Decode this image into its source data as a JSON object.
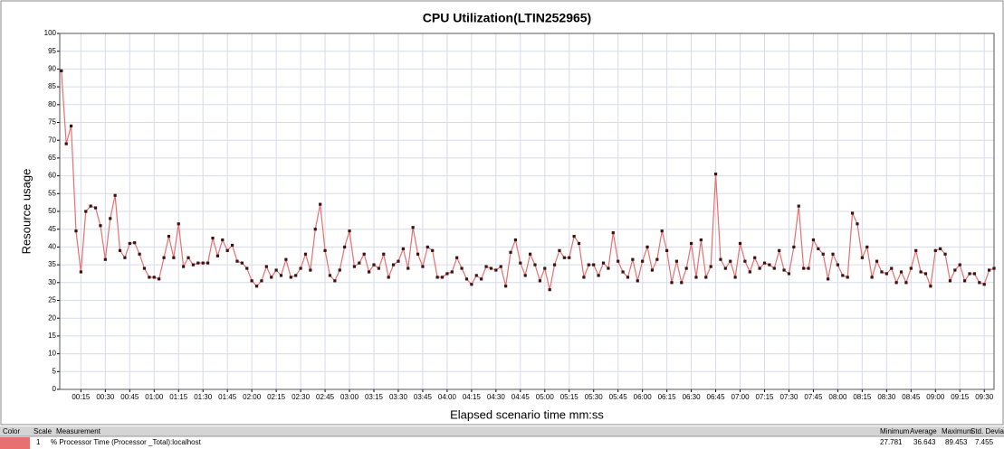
{
  "chart_data": {
    "type": "line",
    "title": "CPU Utilization(LTIN252965)",
    "ylabel": "Resource usage",
    "xlabel": "Elapsed scenario time mm:ss",
    "x": [
      3,
      6,
      9,
      12,
      15,
      18,
      21,
      24,
      27,
      30,
      33,
      36,
      39,
      42,
      45,
      48,
      51,
      54,
      57,
      60,
      63,
      66,
      69,
      72,
      75,
      78,
      81,
      84,
      87,
      90,
      93,
      96,
      99,
      102,
      105,
      108,
      111,
      114,
      117,
      120,
      123,
      126,
      129,
      132,
      135,
      138,
      141,
      144,
      147,
      150,
      153,
      156,
      159,
      162,
      165,
      168,
      171,
      174,
      177,
      180,
      183,
      186,
      189,
      192,
      195,
      198,
      201,
      204,
      207,
      210,
      213,
      216,
      219,
      222,
      225,
      228,
      231,
      234,
      237,
      240,
      243,
      246,
      249,
      252,
      255,
      258,
      261,
      264,
      267,
      270,
      273,
      276,
      279,
      282,
      285,
      288,
      291,
      294,
      297,
      300,
      303,
      306,
      309,
      312,
      315,
      318,
      321,
      324,
      327,
      330,
      333,
      336,
      339,
      342,
      345,
      348,
      351,
      354,
      357,
      360,
      363,
      366,
      369,
      372,
      375,
      378,
      381,
      384,
      387,
      390,
      393,
      396,
      399,
      402,
      405,
      408,
      411,
      414,
      417,
      420,
      423,
      426,
      429,
      432,
      435,
      438,
      441,
      444,
      447,
      450,
      453,
      456,
      459,
      462,
      465,
      468,
      471,
      474,
      477,
      480,
      483,
      486,
      489,
      492,
      495,
      498,
      501,
      504,
      507,
      510,
      513,
      516,
      519,
      522,
      525,
      528,
      531,
      534,
      537,
      540,
      543,
      546,
      549,
      552,
      555,
      558,
      561,
      564,
      567,
      570,
      573,
      576
    ],
    "series": [
      {
        "name": "% Processor Time (Processor _Total):localhost",
        "color": "#e87070",
        "marker_color": "#3a1212",
        "values": [
          89.5,
          69,
          74,
          44.5,
          33,
          50,
          51.5,
          51,
          46,
          36.5,
          48,
          54.5,
          39,
          37,
          41,
          41.2,
          38,
          34,
          31.5,
          31.5,
          31,
          37,
          43,
          37,
          46.5,
          34.5,
          37,
          35,
          35.5,
          35.5,
          35.5,
          42.5,
          37.5,
          42,
          39,
          40.5,
          36,
          35.5,
          34,
          30.5,
          29,
          30.5,
          34.5,
          31.5,
          33.5,
          32,
          36.5,
          31.5,
          32,
          34,
          38,
          33.5,
          45,
          52,
          39,
          32,
          30.5,
          33.5,
          40,
          44.5,
          34.5,
          35.5,
          38,
          33,
          35,
          34,
          38,
          31.5,
          35,
          36,
          39.5,
          34,
          45.5,
          38,
          34.5,
          40,
          39,
          31.5,
          31.5,
          32.5,
          33,
          37,
          34,
          31,
          29.5,
          32,
          31,
          34.5,
          34,
          33.5,
          34.5,
          29,
          38.5,
          42,
          35.5,
          32,
          38,
          35,
          30.5,
          34,
          28,
          35,
          39,
          37,
          37,
          43,
          41,
          31.5,
          35,
          35,
          32,
          35.5,
          34,
          44,
          36,
          33,
          31.5,
          36.5,
          30.5,
          36,
          40,
          33.5,
          36.5,
          44.5,
          39,
          30,
          36,
          30,
          34,
          41,
          31.5,
          42,
          31.5,
          34.5,
          60.5,
          36.5,
          34,
          36,
          31.5,
          41,
          36,
          33,
          37,
          34,
          35.5,
          35,
          34,
          39,
          33.5,
          32.5,
          40,
          51.5,
          34,
          34,
          42,
          39.5,
          38,
          31,
          38,
          35,
          32,
          31.5,
          49.5,
          46.5,
          37,
          40,
          31.5,
          36,
          33,
          32.5,
          34,
          30,
          33,
          30,
          34,
          39,
          33,
          32.5,
          29,
          39,
          39.5,
          38,
          30.5,
          33.5,
          35,
          30.5,
          32.5,
          32.5,
          30,
          29.5,
          33.5,
          34
        ]
      }
    ],
    "xlim": [
      2,
      576
    ],
    "ylim": [
      0,
      100
    ],
    "yticks": [
      0,
      5,
      10,
      15,
      20,
      25,
      30,
      35,
      40,
      45,
      50,
      55,
      60,
      65,
      70,
      75,
      80,
      85,
      90,
      95,
      100
    ],
    "xticks": [
      {
        "value": 15,
        "label": "00:15"
      },
      {
        "value": 30,
        "label": "00:30"
      },
      {
        "value": 45,
        "label": "00:45"
      },
      {
        "value": 60,
        "label": "01:00"
      },
      {
        "value": 75,
        "label": "01:15"
      },
      {
        "value": 90,
        "label": "01:30"
      },
      {
        "value": 105,
        "label": "01:45"
      },
      {
        "value": 120,
        "label": "02:00"
      },
      {
        "value": 135,
        "label": "02:15"
      },
      {
        "value": 150,
        "label": "02:30"
      },
      {
        "value": 165,
        "label": "02:45"
      },
      {
        "value": 180,
        "label": "03:00"
      },
      {
        "value": 195,
        "label": "03:15"
      },
      {
        "value": 210,
        "label": "03:30"
      },
      {
        "value": 225,
        "label": "03:45"
      },
      {
        "value": 240,
        "label": "04:00"
      },
      {
        "value": 255,
        "label": "04:15"
      },
      {
        "value": 270,
        "label": "04:30"
      },
      {
        "value": 285,
        "label": "04:45"
      },
      {
        "value": 300,
        "label": "05:00"
      },
      {
        "value": 315,
        "label": "05:15"
      },
      {
        "value": 330,
        "label": "05:30"
      },
      {
        "value": 345,
        "label": "05:45"
      },
      {
        "value": 360,
        "label": "06:00"
      },
      {
        "value": 375,
        "label": "06:15"
      },
      {
        "value": 390,
        "label": "06:30"
      },
      {
        "value": 405,
        "label": "06:45"
      },
      {
        "value": 420,
        "label": "07:00"
      },
      {
        "value": 435,
        "label": "07:15"
      },
      {
        "value": 450,
        "label": "07:30"
      },
      {
        "value": 465,
        "label": "07:45"
      },
      {
        "value": 480,
        "label": "08:00"
      },
      {
        "value": 495,
        "label": "08:15"
      },
      {
        "value": 510,
        "label": "08:30"
      },
      {
        "value": 525,
        "label": "08:45"
      },
      {
        "value": 540,
        "label": "09:00"
      },
      {
        "value": 555,
        "label": "09:15"
      },
      {
        "value": 570,
        "label": "09:30"
      }
    ],
    "grid": true
  },
  "legend_table": {
    "headers": [
      "Color",
      "Scale",
      "Measurement",
      "Minimum",
      "Average",
      "Maximum",
      "Std. Deviation"
    ],
    "row": {
      "scale": "1",
      "minimum": 27.781,
      "average": 36.643,
      "maximum": 89.453,
      "std_deviation": 7.455
    }
  }
}
